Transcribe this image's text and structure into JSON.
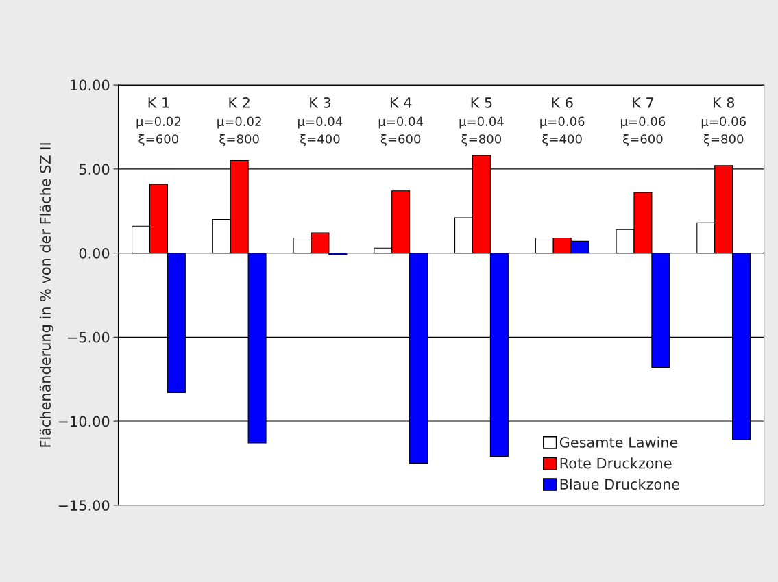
{
  "chart_data": {
    "type": "bar",
    "ylabel": "Flächenänderung in % von der Fläche SZ II",
    "categories": [
      "K 1",
      "K 2",
      "K 3",
      "K 4",
      "K 5",
      "K 6",
      "K 7",
      "K 8"
    ],
    "annotations": [
      "μ=0.02\nξ=600",
      "μ=0.02\nξ=800",
      "μ=0.04\nξ=400",
      "μ=0.04\nξ=600",
      "μ=0.04\nξ=800",
      "μ=0.06\nξ=400",
      "μ=0.06\nξ=600",
      "μ=0.06\nξ=800"
    ],
    "series": [
      {
        "name": "Gesamte Lawine",
        "color": "#ffffff",
        "values": [
          1.6,
          2.0,
          0.9,
          0.3,
          2.1,
          0.9,
          1.4,
          1.8
        ]
      },
      {
        "name": "Rote Druckzone",
        "color": "#ff0000",
        "values": [
          4.1,
          5.5,
          1.2,
          3.7,
          5.8,
          0.9,
          3.6,
          5.2
        ]
      },
      {
        "name": "Blaue Druckzone",
        "color": "#0000ff",
        "values": [
          -8.3,
          -11.3,
          -0.1,
          -12.5,
          -12.1,
          0.7,
          -6.8,
          -11.1
        ]
      }
    ],
    "ylim": [
      -15,
      10
    ],
    "yticks": [
      {
        "value": -15,
        "label": "−15.00"
      },
      {
        "value": -10,
        "label": "−10.00"
      },
      {
        "value": -5,
        "label": "−5.00"
      },
      {
        "value": 0,
        "label": "0.00"
      },
      {
        "value": 5,
        "label": "5.00"
      },
      {
        "value": 10,
        "label": "10.00"
      }
    ],
    "grid": "y",
    "legend": "bottom right",
    "tick_labels": "y"
  }
}
